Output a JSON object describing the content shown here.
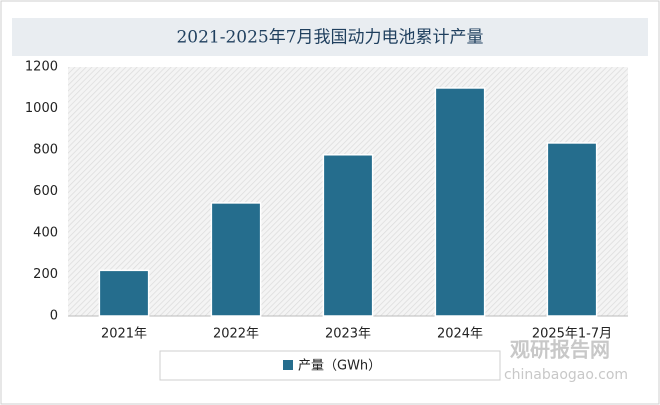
{
  "chart_data": {
    "type": "bar",
    "title": "2021-2025年7月我国动力电池累计产量",
    "categories": [
      "2021年",
      "2022年",
      "2023年",
      "2024年",
      "2025年1-7月"
    ],
    "series": [
      {
        "name": "产量（GWh）",
        "color": "#256d8d",
        "values": [
          220,
          545,
          777,
          1099,
          834
        ]
      }
    ],
    "ylim": [
      0,
      1200
    ],
    "yticks": [
      0,
      200,
      400,
      600,
      800,
      1000,
      1200
    ],
    "grid": false,
    "legend": "bottom"
  },
  "watermark": {
    "name": "观研报告网",
    "url": "chinabaogao.com"
  }
}
